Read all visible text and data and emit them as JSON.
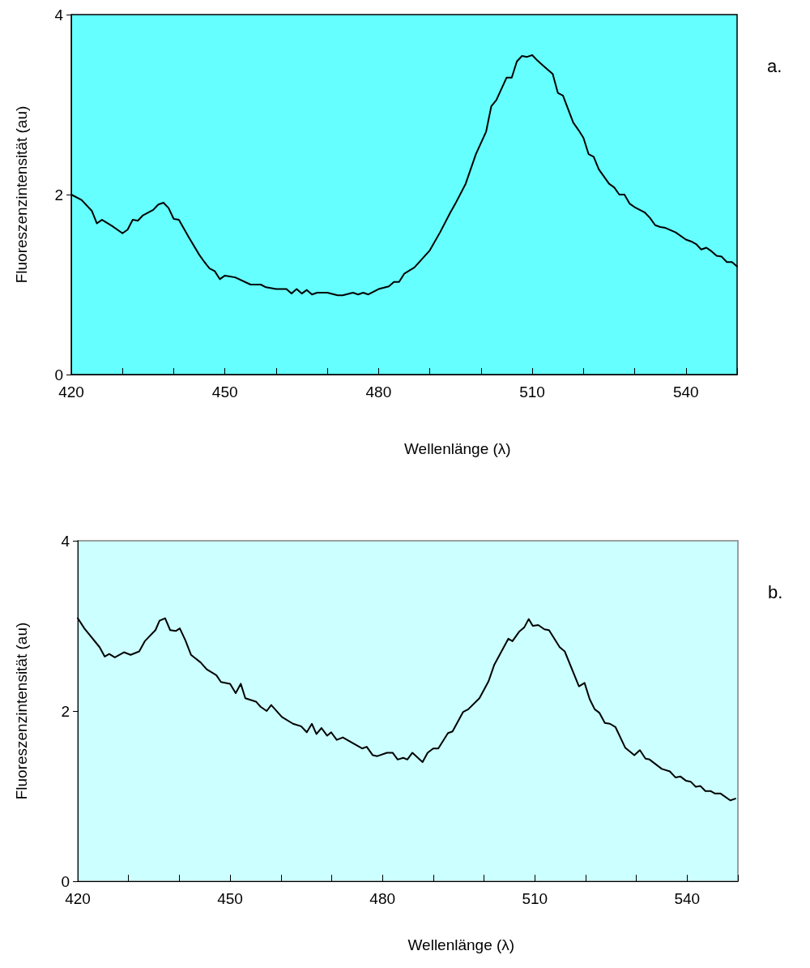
{
  "chart_data": [
    {
      "type": "line",
      "xlabel": "Wellenlänge (λ)",
      "ylabel": "Fluoreszenzintensität (au)",
      "annotations": [
        "a."
      ],
      "xlim": [
        420,
        550
      ],
      "ylim": [
        0,
        4
      ],
      "yticks": [
        0,
        2,
        4
      ],
      "xticks": [
        420,
        {
          "value": 430,
          "label": null
        },
        {
          "value": 440,
          "label": null
        },
        450,
        {
          "value": 460,
          "label": null
        },
        {
          "value": 470,
          "label": null
        },
        480,
        {
          "value": 490,
          "label": null
        },
        {
          "value": 500,
          "label": null
        },
        510,
        {
          "value": 520,
          "label": null
        },
        {
          "value": 530,
          "label": null
        },
        540,
        {
          "value": 550,
          "label": null
        }
      ],
      "grid": false,
      "marker": "none",
      "line_style": "solid",
      "series": [
        {
          "color": "#000000",
          "x": [
            420,
            422,
            424,
            425,
            426,
            428,
            430,
            431,
            432,
            433,
            434,
            436,
            437,
            438,
            439,
            440,
            441,
            443,
            445,
            446,
            447,
            448,
            449,
            450,
            452,
            455,
            457,
            458,
            460,
            462,
            463,
            464,
            465,
            466,
            467,
            468,
            470,
            472,
            473,
            475,
            476,
            477,
            478,
            480,
            482,
            483,
            484,
            485,
            487,
            490,
            492,
            494,
            495,
            497,
            499,
            501,
            502,
            503,
            505,
            506,
            507,
            508,
            509,
            510,
            511,
            512,
            514,
            515,
            516,
            518,
            519,
            520,
            521,
            522,
            523,
            525,
            526,
            527,
            528,
            529,
            530,
            532,
            533,
            534,
            535,
            536,
            538,
            540,
            541,
            542,
            543,
            544,
            545,
            546,
            547,
            548,
            549,
            550
          ],
          "values": [
            2.0,
            1.94,
            1.82,
            1.68,
            1.72,
            1.65,
            1.57,
            1.61,
            1.72,
            1.71,
            1.77,
            1.83,
            1.89,
            1.91,
            1.85,
            1.73,
            1.72,
            1.52,
            1.33,
            1.25,
            1.18,
            1.15,
            1.06,
            1.1,
            1.08,
            1.0,
            1.0,
            0.97,
            0.95,
            0.95,
            0.9,
            0.95,
            0.9,
            0.94,
            0.89,
            0.91,
            0.91,
            0.88,
            0.88,
            0.91,
            0.89,
            0.91,
            0.89,
            0.95,
            0.98,
            1.03,
            1.03,
            1.12,
            1.19,
            1.38,
            1.58,
            1.8,
            1.9,
            2.12,
            2.45,
            2.7,
            2.98,
            3.05,
            3.3,
            3.3,
            3.48,
            3.54,
            3.53,
            3.55,
            3.49,
            3.44,
            3.34,
            3.13,
            3.1,
            2.8,
            2.72,
            2.63,
            2.45,
            2.42,
            2.28,
            2.12,
            2.08,
            2.0,
            2.0,
            1.9,
            1.86,
            1.8,
            1.74,
            1.66,
            1.64,
            1.63,
            1.58,
            1.5,
            1.48,
            1.45,
            1.39,
            1.41,
            1.37,
            1.32,
            1.31,
            1.25,
            1.25,
            1.2
          ]
        }
      ]
    },
    {
      "type": "line",
      "xlabel": "Wellenlänge (λ)",
      "ylabel": "Fluoreszenzintensität (au)",
      "annotations": [
        "b."
      ],
      "xlim": [
        420,
        550
      ],
      "ylim": [
        0,
        4
      ],
      "yticks": [
        0,
        2,
        4
      ],
      "xticks": [
        420,
        {
          "value": 430,
          "label": null
        },
        {
          "value": 440,
          "label": null
        },
        450,
        {
          "value": 460,
          "label": null
        },
        {
          "value": 470,
          "label": null
        },
        480,
        {
          "value": 490,
          "label": null
        },
        {
          "value": 500,
          "label": null
        },
        510,
        {
          "value": 520,
          "label": null
        },
        {
          "value": 530,
          "label": null
        },
        540,
        {
          "value": 550,
          "label": null
        }
      ],
      "grid": false,
      "marker": "none",
      "line_style": "solid",
      "series": [
        {
          "color": "#000000",
          "x": [
            420,
            421.3,
            424.3,
            425.3,
            426.2,
            427.3,
            429.1,
            430.4,
            432.1,
            433.2,
            435.3,
            436.1,
            437.2,
            438.2,
            439.3,
            440.1,
            441.2,
            442.3,
            444.2,
            445.4,
            447.3,
            448.2,
            450,
            451.1,
            452.1,
            453,
            455.1,
            456,
            457.2,
            458.1,
            460.2,
            462.4,
            464,
            465.1,
            466.1,
            467,
            468,
            469.1,
            469.9,
            471,
            472.2,
            476,
            476.9,
            478.1,
            479,
            480.9,
            482,
            483,
            484.1,
            484.9,
            485.9,
            487.9,
            488.9,
            490,
            491,
            492.9,
            493.8,
            495.9,
            496.9,
            499.1,
            500.9,
            502,
            504.8,
            505.6,
            506.9,
            507.9,
            508.8,
            509.6,
            510.7,
            511.9,
            512.8,
            514.9,
            515.9,
            518.7,
            519.8,
            520.8,
            521.8,
            522.7,
            523.8,
            524.8,
            525.9,
            527.8,
            529.6,
            530.7,
            531.8,
            532.6,
            535,
            536.6,
            537.7,
            538.7,
            539.8,
            540.7,
            541.7,
            542.6,
            543.6,
            544.6,
            545.5,
            546.6,
            548.5,
            549.5
          ],
          "values": [
            3.09,
            2.97,
            2.75,
            2.64,
            2.67,
            2.63,
            2.69,
            2.66,
            2.7,
            2.82,
            2.95,
            3.06,
            3.09,
            2.95,
            2.94,
            2.97,
            2.83,
            2.66,
            2.57,
            2.49,
            2.42,
            2.34,
            2.32,
            2.21,
            2.32,
            2.15,
            2.11,
            2.05,
            2.0,
            2.07,
            1.93,
            1.85,
            1.82,
            1.75,
            1.85,
            1.73,
            1.8,
            1.71,
            1.75,
            1.66,
            1.69,
            1.56,
            1.58,
            1.48,
            1.47,
            1.51,
            1.51,
            1.43,
            1.45,
            1.43,
            1.51,
            1.4,
            1.51,
            1.56,
            1.56,
            1.74,
            1.76,
            1.99,
            2.02,
            2.15,
            2.35,
            2.54,
            2.85,
            2.82,
            2.93,
            2.98,
            3.08,
            3.0,
            3.01,
            2.96,
            2.95,
            2.75,
            2.7,
            2.29,
            2.33,
            2.14,
            2.02,
            1.98,
            1.86,
            1.85,
            1.81,
            1.57,
            1.48,
            1.54,
            1.44,
            1.43,
            1.32,
            1.29,
            1.22,
            1.23,
            1.18,
            1.17,
            1.11,
            1.12,
            1.06,
            1.06,
            1.03,
            1.03,
            0.95,
            0.97
          ]
        }
      ]
    }
  ]
}
